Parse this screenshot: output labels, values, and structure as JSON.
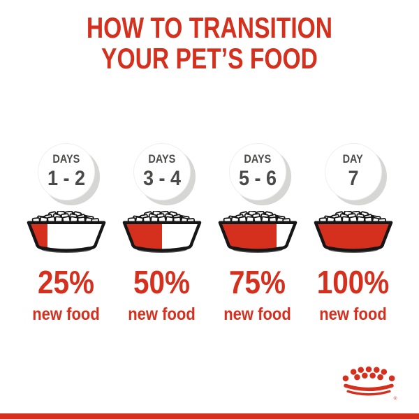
{
  "title": {
    "line1": "HOW TO TRANSITION",
    "line2": "YOUR PET’S FOOD"
  },
  "steps": [
    {
      "day_label": "DAYS",
      "day_value": "1 - 2",
      "percent": "25%",
      "percent_value": 25,
      "caption": "new food"
    },
    {
      "day_label": "DAYS",
      "day_value": "3 - 4",
      "percent": "50%",
      "percent_value": 50,
      "caption": "new food"
    },
    {
      "day_label": "DAYS",
      "day_value": "5 - 6",
      "percent": "75%",
      "percent_value": 75,
      "caption": "new food"
    },
    {
      "day_label": "DAY",
      "day_value": "7",
      "percent": "100%",
      "percent_value": 100,
      "caption": "new food"
    }
  ],
  "brand": {
    "logo_name": "royal-canin-crown",
    "registered_mark": "®"
  },
  "colors": {
    "accent_red": "#d52f1e",
    "day_text_gray": "#4a4a48",
    "outline_black": "#161616",
    "circle_shadow": "#d6d6d4",
    "bowl_ground_shadow": "#4f4f4f"
  }
}
